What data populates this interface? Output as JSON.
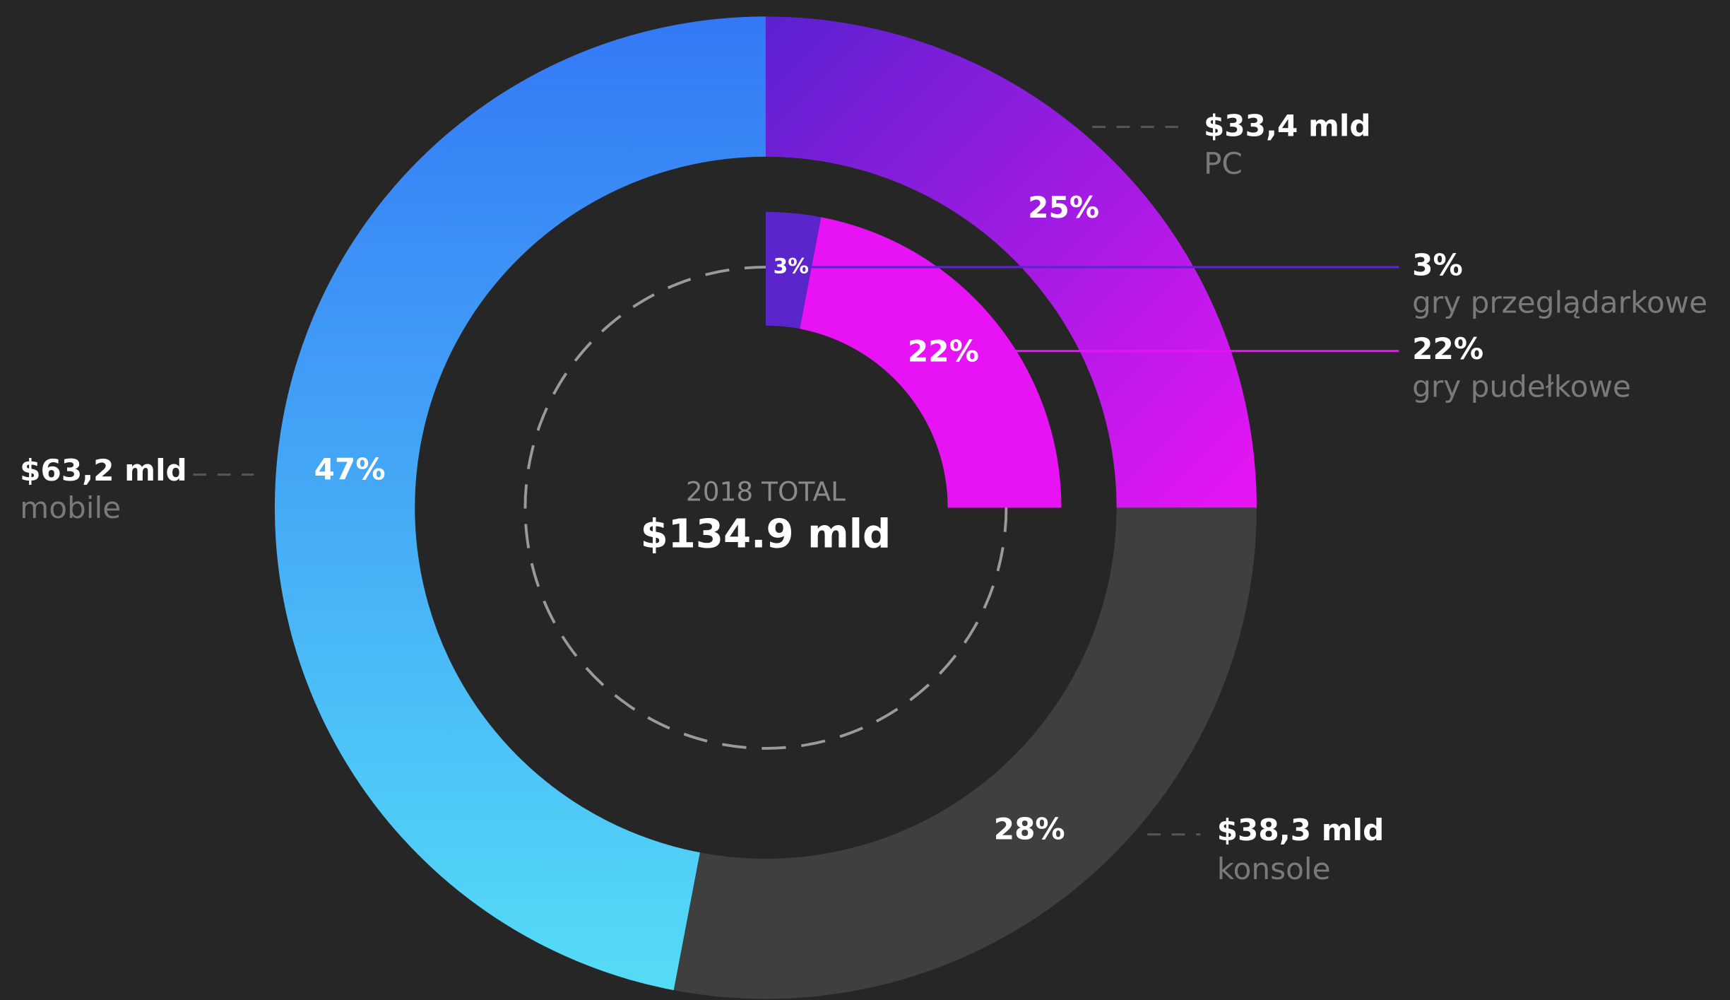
{
  "chart_data": {
    "type": "pie",
    "center_label": "2018 TOTAL",
    "center_value": "$134.9 mld",
    "categories": [
      "PC",
      "konsole",
      "mobile"
    ],
    "values": [
      25,
      28,
      47
    ],
    "value_labels": [
      "25%",
      "28%",
      "47%"
    ],
    "amounts": [
      "$33,4 mld",
      "$38,3 mld",
      "$63,2 mld"
    ],
    "colors": [
      "#5b21d0",
      "#3f3f3f",
      "#3478f6"
    ],
    "gradient_colors": [
      "#e815f5",
      null,
      "#55dcf7"
    ],
    "inner": {
      "categories": [
        "gry przeglądarkowe",
        "gry pudełkowe"
      ],
      "values": [
        3,
        22
      ],
      "value_labels": [
        "3%",
        "22%"
      ],
      "colors": [
        "#5b25cc",
        "#e813f5"
      ]
    }
  }
}
